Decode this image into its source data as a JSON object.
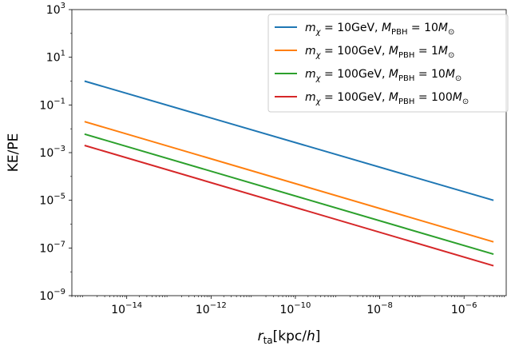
{
  "chart_data": {
    "type": "line",
    "xscale": "log",
    "yscale": "log",
    "xlim": [
      5e-16,
      1e-05
    ],
    "ylim": [
      1e-09,
      1000.0
    ],
    "xlabel": {
      "main": "r",
      "sub": "ta",
      "unit": "[kpc/",
      "unit_var": "h",
      "close": "]"
    },
    "ylabel": "KE/PE",
    "x_ticks": [
      {
        "value": 1e-14,
        "base": "10",
        "exp": "−14"
      },
      {
        "value": 1e-12,
        "base": "10",
        "exp": "−12"
      },
      {
        "value": 1e-10,
        "base": "10",
        "exp": "−10"
      },
      {
        "value": 1e-08,
        "base": "10",
        "exp": "−8"
      },
      {
        "value": 1e-06,
        "base": "10",
        "exp": "−6"
      }
    ],
    "y_ticks": [
      {
        "value": 1e-09,
        "base": "10",
        "exp": "−9"
      },
      {
        "value": 1e-07,
        "base": "10",
        "exp": "−7"
      },
      {
        "value": 1e-05,
        "base": "10",
        "exp": "−5"
      },
      {
        "value": 0.001,
        "base": "10",
        "exp": "−3"
      },
      {
        "value": 0.1,
        "base": "10",
        "exp": "−1"
      },
      {
        "value": 10.0,
        "base": "10",
        "exp": "1"
      },
      {
        "value": 1000.0,
        "base": "10",
        "exp": "3"
      }
    ],
    "series": [
      {
        "mchi": "10GeV",
        "mpbh": "10",
        "color": "#1f77b4",
        "x": [
          1e-15,
          5e-06
        ],
        "y": [
          1.0,
          1e-05
        ]
      },
      {
        "mchi": "100GeV",
        "mpbh": "1",
        "color": "#ff7f0e",
        "x": [
          1e-15,
          5e-06
        ],
        "y": [
          0.02,
          1.8e-07
        ]
      },
      {
        "mchi": "100GeV",
        "mpbh": "10",
        "color": "#2ca02c",
        "x": [
          1e-15,
          5e-06
        ],
        "y": [
          0.006,
          5.5e-08
        ]
      },
      {
        "mchi": "100GeV",
        "mpbh": "100",
        "color": "#d62728",
        "x": [
          1e-15,
          5e-06
        ],
        "y": [
          0.002,
          1.8e-08
        ]
      }
    ],
    "legend_position": "upper right",
    "grid": false
  }
}
